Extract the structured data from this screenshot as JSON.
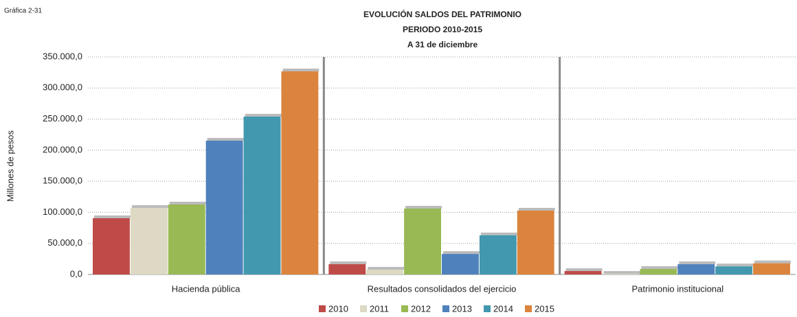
{
  "chart_data": {
    "type": "bar",
    "caption": "Gráfica 2-31",
    "title": [
      "EVOLUCIÓN SALDOS DEL PATRIMONIO",
      "PERIODO 2010-2015",
      "A 31 de diciembre"
    ],
    "y_label": "Millones de pesos",
    "categories": [
      "Hacienda pública",
      "Resultados consolidados del ejercicio",
      "Patrimonio institucional"
    ],
    "series": [
      {
        "name": "2010",
        "color": "#be4b48",
        "values": [
          90500,
          16500,
          5500
        ]
      },
      {
        "name": "2011",
        "color": "#ddd9c4",
        "values": [
          107000,
          7700,
          1000
        ]
      },
      {
        "name": "2012",
        "color": "#98b954",
        "values": [
          112600,
          106000,
          8800
        ]
      },
      {
        "name": "2013",
        "color": "#4f81bd",
        "values": [
          215300,
          33000,
          16500
        ]
      },
      {
        "name": "2014",
        "color": "#4198af",
        "values": [
          254000,
          63000,
          13000
        ]
      },
      {
        "name": "2015",
        "color": "#db843d",
        "values": [
          326800,
          102700,
          18000
        ]
      }
    ],
    "ylim": [
      0,
      350000
    ],
    "yticks": [
      {
        "value": 0,
        "label": "0,0"
      },
      {
        "value": 50000,
        "label": "50.000,0"
      },
      {
        "value": 100000,
        "label": "100.000,0"
      },
      {
        "value": 150000,
        "label": "150.000,0"
      },
      {
        "value": 200000,
        "label": "200.000,0"
      },
      {
        "value": 250000,
        "label": "250.000,0"
      },
      {
        "value": 300000,
        "label": "300.000,0"
      },
      {
        "value": 350000,
        "label": "350.000,0"
      }
    ],
    "grid": true
  }
}
